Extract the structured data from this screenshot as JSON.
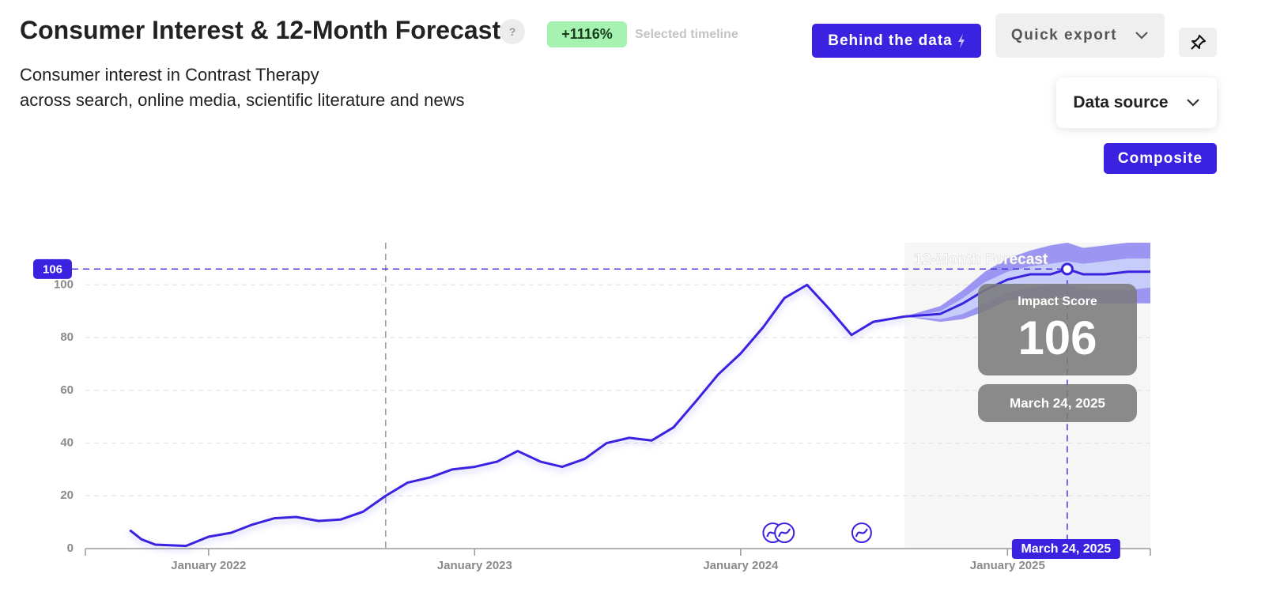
{
  "header": {
    "title": "Consumer Interest & 12-Month Forecast",
    "help": "?",
    "change": "+1116%",
    "change_label": "Selected timeline",
    "subtitle_lines": [
      "Consumer interest in Contrast Therapy",
      "across search, online media, scientific literature and news"
    ]
  },
  "toolbar": {
    "behind_the_data": "Behind the data",
    "quick_export": "Quick export",
    "data_source": "Data source",
    "composite": "Composite"
  },
  "chart_data": {
    "type": "line",
    "xlim": [
      "2021-07-16",
      "2025-07-16"
    ],
    "xticks": [
      {
        "value": "2022-01-01",
        "label": "January 2022"
      },
      {
        "value": "2023-01-01",
        "label": "January 2023"
      },
      {
        "value": "2024-01-01",
        "label": "January 2024"
      },
      {
        "value": "2025-01-01",
        "label": "January 2025"
      }
    ],
    "ylim": [
      0,
      116
    ],
    "yticks": [
      0,
      20,
      40,
      60,
      80,
      100
    ],
    "grid": true,
    "reference_x": "2022-09-01",
    "history": {
      "color": "#3b22e0",
      "x": [
        "2021-09-15",
        "2021-10-01",
        "2021-10-20",
        "2021-12-01",
        "2022-01-01",
        "2022-02-01",
        "2022-03-01",
        "2022-04-01",
        "2022-05-01",
        "2022-06-01",
        "2022-07-01",
        "2022-08-01",
        "2022-09-01",
        "2022-10-01",
        "2022-11-01",
        "2022-12-01",
        "2023-01-01",
        "2023-02-01",
        "2023-03-01",
        "2023-04-01",
        "2023-05-01",
        "2023-06-01",
        "2023-07-01",
        "2023-08-01",
        "2023-09-01",
        "2023-10-01",
        "2023-11-01",
        "2023-12-01",
        "2024-01-01",
        "2024-02-01",
        "2024-03-01",
        "2024-04-01",
        "2024-05-01",
        "2024-06-01",
        "2024-07-01",
        "2024-08-13"
      ],
      "values": [
        7,
        3.5,
        1.5,
        1,
        4.5,
        6,
        9,
        11.5,
        12,
        10.5,
        11,
        14,
        20,
        25,
        27,
        30,
        31,
        33,
        37,
        33,
        31,
        34,
        40,
        42,
        41,
        46,
        56,
        66,
        74,
        84,
        95,
        100,
        91,
        81,
        86,
        88
      ]
    },
    "forecast": {
      "label": "12-Month Forecast",
      "color": "#3b22e0",
      "band_color": "#9c96f2",
      "inner_band_color": "#c7cdfa",
      "x": [
        "2024-08-13",
        "2024-10-01",
        "2024-11-01",
        "2024-12-01",
        "2025-01-01",
        "2025-02-01",
        "2025-03-01",
        "2025-03-24",
        "2025-04-15",
        "2025-05-15",
        "2025-06-15",
        "2025-07-16"
      ],
      "values": [
        88,
        89,
        93,
        98,
        102,
        104,
        104,
        106,
        104,
        104,
        105,
        105
      ],
      "upper": [
        88,
        92,
        98,
        105,
        110,
        113,
        115,
        116,
        114,
        115,
        116,
        116
      ],
      "lower": [
        88,
        86,
        87,
        90,
        94,
        95,
        95,
        95,
        93,
        93,
        93,
        93
      ],
      "inner_upper": [
        88,
        90,
        95,
        101,
        105,
        107,
        108,
        109,
        108,
        109,
        110,
        110
      ],
      "inner_lower": [
        88,
        87,
        89,
        93,
        97,
        99,
        100,
        100,
        98,
        98,
        98,
        99
      ]
    },
    "events": [
      "2024-02-14",
      "2024-03-01",
      "2024-06-15"
    ],
    "highlight": {
      "x": "2025-03-24",
      "value": 106,
      "label": "March 24, 2025",
      "score_label": "Impact Score"
    }
  }
}
